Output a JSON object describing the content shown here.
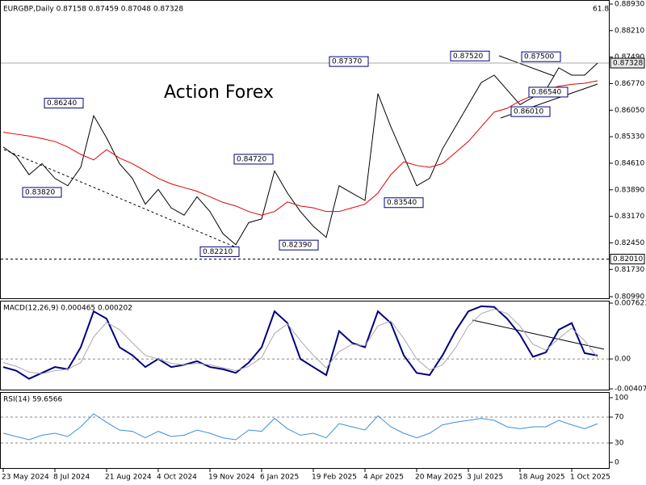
{
  "chart_data": [
    {
      "type": "line",
      "header": "EURGBP,Daily  0.87158 0.87459 0.87048 0.87328",
      "watermark": "Action Forex",
      "level_text": "61.8",
      "ylim": [
        0.8099,
        0.8893
      ],
      "yticks": [
        {
          "value": 0.8893,
          "label": "0.88930"
        },
        {
          "value": 0.8821,
          "label": "0.88210"
        },
        {
          "value": 0.8749,
          "label": "0.87490"
        },
        {
          "value": 0.8677,
          "label": "0.86770"
        },
        {
          "value": 0.8605,
          "label": "0.86050"
        },
        {
          "value": 0.8533,
          "label": "0.85330"
        },
        {
          "value": 0.8461,
          "label": "0.84610"
        },
        {
          "value": 0.8389,
          "label": "0.83890"
        },
        {
          "value": 0.8317,
          "label": "0.83170"
        },
        {
          "value": 0.8245,
          "label": "0.82450"
        },
        {
          "value": 0.8173,
          "label": "0.81730"
        },
        {
          "value": 0.8099,
          "label": "0.80990"
        }
      ],
      "last_price": {
        "value": 0.87328,
        "label": "0.87328"
      },
      "level": {
        "value": 0.8201,
        "label": "0.82010"
      },
      "annotations": [
        {
          "value": 0.8624,
          "label": "0.86240"
        },
        {
          "value": 0.8382,
          "label": "0.83820"
        },
        {
          "value": 0.8472,
          "label": "0.84720"
        },
        {
          "value": 0.8221,
          "label": "0.82210"
        },
        {
          "value": 0.8239,
          "label": "0.82390"
        },
        {
          "value": 0.8737,
          "label": "0.87370"
        },
        {
          "value": 0.8354,
          "label": "0.83540"
        },
        {
          "value": 0.8752,
          "label": "0.87520"
        },
        {
          "value": 0.875,
          "label": "0.87500"
        },
        {
          "value": 0.8654,
          "label": "0.86540"
        },
        {
          "value": 0.8601,
          "label": "0.86010"
        }
      ],
      "series": [
        {
          "color": "#000000",
          "values": [
            0.8505,
            0.848,
            0.843,
            0.846,
            0.842,
            0.84,
            0.845,
            0.859,
            0.853,
            0.846,
            0.842,
            0.835,
            0.839,
            0.834,
            0.832,
            0.837,
            0.833,
            0.827,
            0.824,
            0.83,
            0.831,
            0.844,
            0.838,
            0.833,
            0.829,
            0.826,
            0.84,
            0.838,
            0.836,
            0.865,
            0.856,
            0.848,
            0.84,
            0.842,
            0.85,
            0.856,
            0.862,
            0.868,
            0.87,
            0.866,
            0.862,
            0.864,
            0.866,
            0.872,
            0.87,
            0.87,
            0.87328
          ]
        },
        {
          "color": "#e00000",
          "values": [
            0.8545,
            0.854,
            0.8535,
            0.8528,
            0.852,
            0.8505,
            0.8485,
            0.847,
            0.8498,
            0.8475,
            0.846,
            0.844,
            0.842,
            0.8405,
            0.8395,
            0.8385,
            0.837,
            0.8355,
            0.8345,
            0.833,
            0.832,
            0.833,
            0.8356,
            0.8345,
            0.834,
            0.833,
            0.833,
            0.834,
            0.835,
            0.838,
            0.843,
            0.8465,
            0.8455,
            0.845,
            0.846,
            0.849,
            0.852,
            0.856,
            0.86,
            0.861,
            0.863,
            0.8645,
            0.866,
            0.867,
            0.8675,
            0.8678,
            0.8685
          ]
        }
      ]
    },
    {
      "type": "line",
      "header": "MACD(12,26,9) 0.000465 0.000202",
      "ylim": [
        -0.004073,
        0.007623
      ],
      "yticks": [
        0.007623,
        {
          "value": 0,
          "label": "0.00"
        },
        -0.004073
      ],
      "series": [
        {
          "color": "#000080",
          "values": [
            -0.0011,
            -0.0016,
            -0.0027,
            -0.0019,
            -0.0011,
            -0.0014,
            0.0016,
            0.0065,
            0.0055,
            0.0016,
            0.0005,
            -0.0011,
            0,
            -0.0011,
            -0.0008,
            -0.0003,
            -0.0011,
            -0.0014,
            -0.0019,
            -0.0005,
            0.0016,
            0.0065,
            0.0049,
            0,
            -0.0011,
            -0.0022,
            0.0038,
            0.0022,
            0.0016,
            0.0065,
            0.0049,
            0.0005,
            -0.0019,
            -0.0022,
            0.0005,
            0.0038,
            0.0065,
            0.0072,
            0.0071,
            0.0055,
            0.0033,
            0.0003,
            0.0009,
            0.004,
            0.0049,
            0.0008,
            0.000465
          ]
        },
        {
          "color": "#a8a8a8",
          "values": [
            -0.0005,
            -0.001,
            -0.0018,
            -0.002,
            -0.0016,
            -0.0014,
            -0.0005,
            0.003,
            0.005,
            0.004,
            0.0022,
            0.0005,
            0,
            -0.0006,
            -0.0008,
            -0.0006,
            -0.0008,
            -0.0012,
            -0.0016,
            -0.001,
            0.0002,
            0.0035,
            0.0048,
            0.0025,
            0.0005,
            -0.0012,
            0.001,
            0.002,
            0.0018,
            0.0045,
            0.0052,
            0.0028,
            0,
            -0.0015,
            -0.0008,
            0.0015,
            0.0045,
            0.0062,
            0.0068,
            0.0062,
            0.0045,
            0.002,
            0.0012,
            0.0028,
            0.0042,
            0.0025,
            0.000202
          ]
        }
      ]
    },
    {
      "type": "line",
      "header": "RSI(14) 59.6566",
      "ylim": [
        0,
        100
      ],
      "yticks": [
        100,
        70,
        30,
        0
      ],
      "categories": [
        "23 May 2024",
        null,
        null,
        null,
        "8 Jul 2024",
        null,
        null,
        null,
        "21 Aug 2024",
        null,
        null,
        null,
        "4 Oct 2024",
        null,
        null,
        null,
        "19 Nov 2024",
        null,
        null,
        null,
        "6 Jan 2025",
        null,
        null,
        null,
        "19 Feb 2025",
        null,
        null,
        null,
        "4 Apr 2025",
        null,
        null,
        null,
        "20 May 2025",
        null,
        null,
        null,
        "3 Jul 2025",
        null,
        null,
        null,
        "18 Aug 2025",
        null,
        null,
        null,
        "1 Oct 2025",
        null,
        null
      ],
      "series": [
        {
          "color": "#3b8fd6",
          "values": [
            45,
            40,
            35,
            42,
            45,
            40,
            55,
            75,
            62,
            50,
            48,
            38,
            48,
            40,
            42,
            50,
            45,
            38,
            35,
            50,
            48,
            68,
            52,
            42,
            45,
            38,
            60,
            55,
            50,
            72,
            55,
            45,
            38,
            45,
            58,
            62,
            65,
            68,
            65,
            55,
            52,
            55,
            55,
            65,
            58,
            52,
            59.6566
          ]
        }
      ]
    }
  ]
}
